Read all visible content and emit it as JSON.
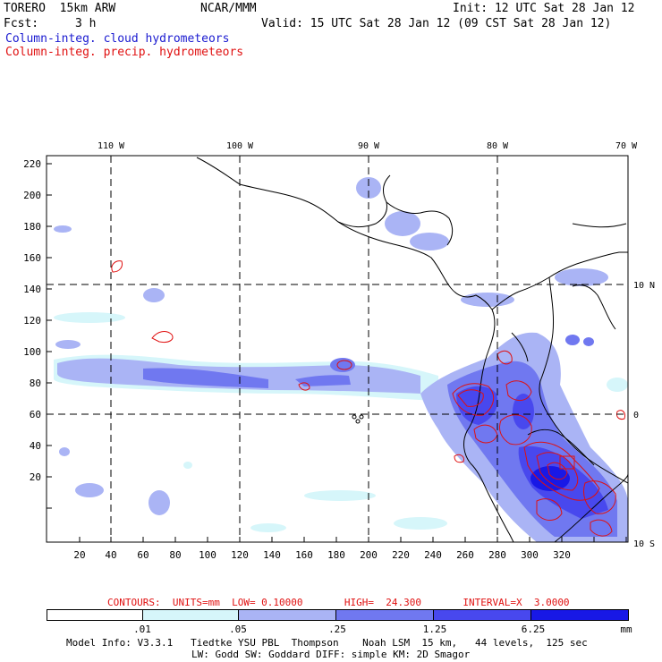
{
  "header": {
    "model": "TORERO  15km ARW",
    "org": "NCAR/MMM",
    "init": "Init: 12 UTC Sat 28 Jan 12",
    "fcst_label": "Fcst:",
    "fcst_value": "3 h",
    "valid": "Valid: 15 UTC Sat 28 Jan 12 (09 CST Sat 28 Jan 12)",
    "field1": "Column-integ. cloud hydrometeors",
    "field2": "Column-integ. precip. hydrometeors"
  },
  "map": {
    "top_labels": [
      "110 W",
      "100 W",
      "90 W",
      "80 W",
      "70 W"
    ],
    "right_labels": [
      "10 N",
      "0",
      "10 S"
    ],
    "y_ticks": [
      "220",
      "200",
      "180",
      "160",
      "140",
      "120",
      "100",
      "80",
      "60",
      "40",
      "20"
    ],
    "x_ticks": [
      "20",
      "40",
      "60",
      "80",
      "100",
      "120",
      "140",
      "160",
      "180",
      "200",
      "220",
      "240",
      "260",
      "280",
      "300",
      "320"
    ]
  },
  "contours": {
    "text": "CONTOURS:  UNITS=mm  LOW= 0.10000       HIGH=  24.300       INTERVAL=X  3.0000"
  },
  "colorbar": {
    "labels": [
      ".01",
      ".05",
      ".25",
      "1.25",
      "6.25",
      "mm"
    ],
    "colors": [
      "#ffffff",
      "#d6f6fa",
      "#aab4f5",
      "#7078f0",
      "#4848ee",
      "#1818e6"
    ]
  },
  "footer": {
    "line1": "Model Info: V3.3.1   Tiedtke YSU PBL  Thompson    Noah LSM  15 km,   44 levels,  125 sec",
    "line2": "LW: Godd SW: Goddard DIFF: simple KM: 2D Smagor"
  }
}
